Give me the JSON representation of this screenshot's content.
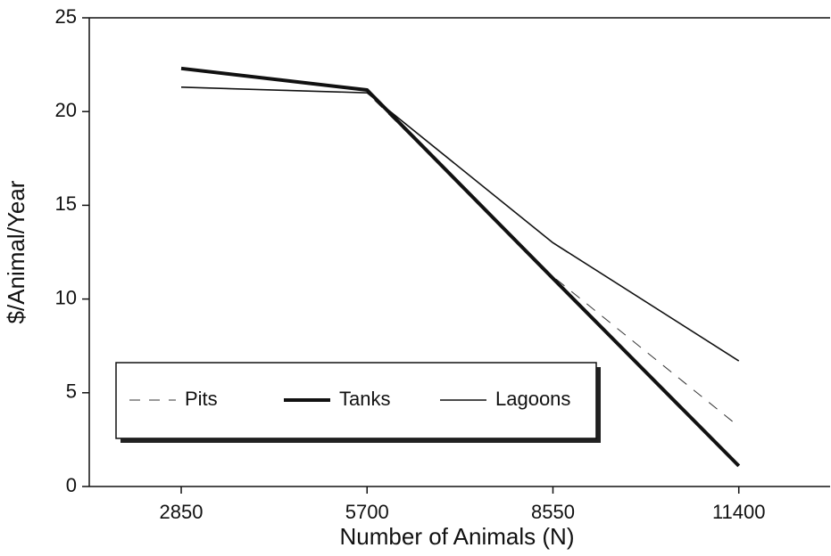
{
  "chart_data": {
    "type": "line",
    "xlabel": "Number of Animals (N)",
    "ylabel": "$/Animal/Year",
    "x": [
      2850,
      5700,
      8550,
      11400
    ],
    "xlim": [
      1440,
      12800
    ],
    "xticks": [
      2850,
      5700,
      8550,
      11400
    ],
    "ylim": [
      0,
      25
    ],
    "yticks": [
      0,
      5,
      10,
      15,
      20,
      25
    ],
    "grid": false,
    "legend": "lower left",
    "series": [
      {
        "name": "Pits",
        "color": "#333333",
        "style": "dashed",
        "width": 1,
        "values": [
          21.3,
          21.0,
          11.2,
          3.2
        ]
      },
      {
        "name": "Tanks",
        "color": "#111111",
        "style": "solid",
        "width": 4,
        "values": [
          22.3,
          21.15,
          11.1,
          1.1
        ]
      },
      {
        "name": "Lagoons",
        "color": "#111111",
        "style": "solid",
        "width": 1.6,
        "values": [
          21.3,
          21.0,
          13.0,
          6.7
        ]
      }
    ]
  }
}
